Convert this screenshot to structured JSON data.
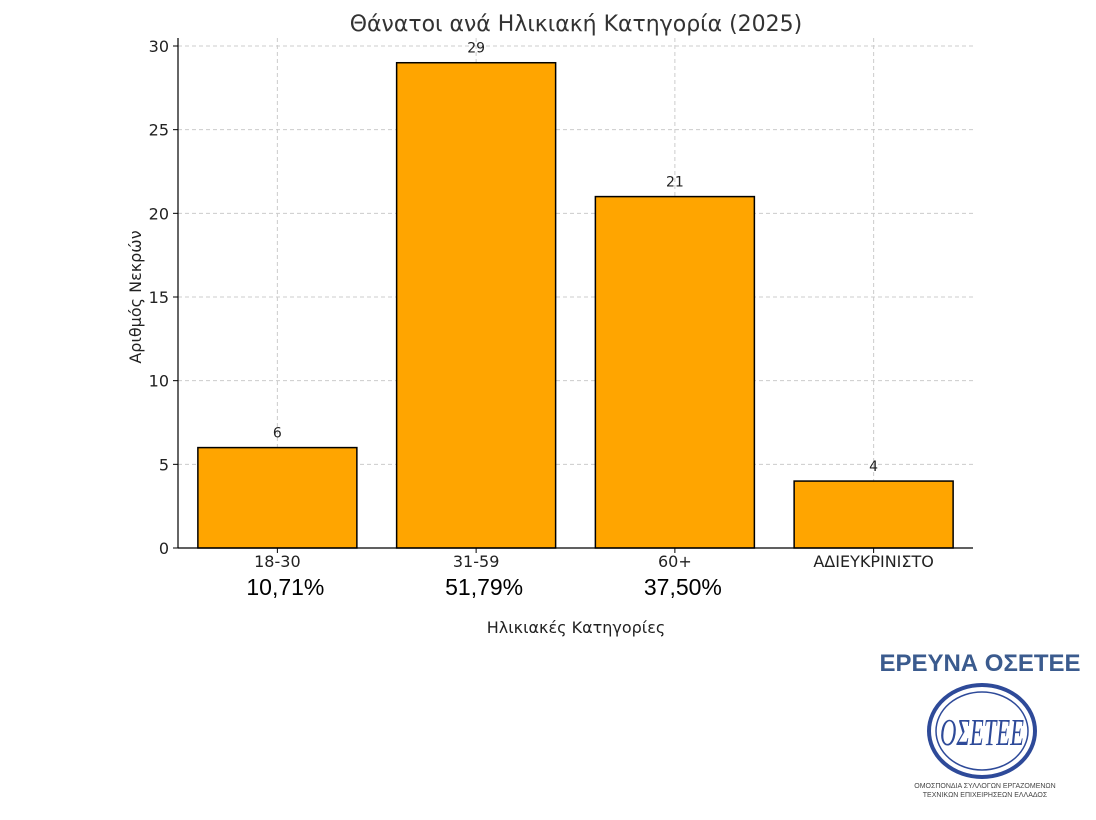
{
  "chart_data": {
    "type": "bar",
    "title": "Θάνατοι ανά Ηλικιακή Κατηγορία (2025)",
    "xlabel": "Ηλικιακές Κατηγορίες",
    "ylabel": "Αριθμός Νεκρών",
    "categories": [
      "18-30",
      "31-59",
      "60+",
      "ΑΔΙΕΥΚΡΙΝΙΣΤΟ"
    ],
    "values": [
      6,
      29,
      21,
      4
    ],
    "data_labels": [
      "6",
      "29",
      "21",
      "4"
    ],
    "percentages": [
      "10,71%",
      "51,79%",
      "37,50%",
      ""
    ],
    "yticks": [
      0,
      5,
      10,
      15,
      20,
      25,
      30
    ],
    "ylim": [
      0,
      30
    ],
    "grid": true,
    "bar_color": "#FFA500"
  },
  "branding": {
    "title": "ΕΡΕΥΝΑ ΟΣΕΤΕΕ",
    "title_color": "#3B5B8E",
    "logo_text": "ΟΣΕΤΕΕ",
    "logo_color": "#2E4A99",
    "caption_line1": "ΟΜΟΣΠΟΝΔΙΑ ΣΥΛΛΟΓΩΝ ΕΡΓΑΖΟΜΕΝΩΝ",
    "caption_line2": "ΤΕΧΝΙΚΩΝ ΕΠΙΧΕΙΡΗΣΕΩΝ ΕΛΛΑΔΟΣ"
  }
}
